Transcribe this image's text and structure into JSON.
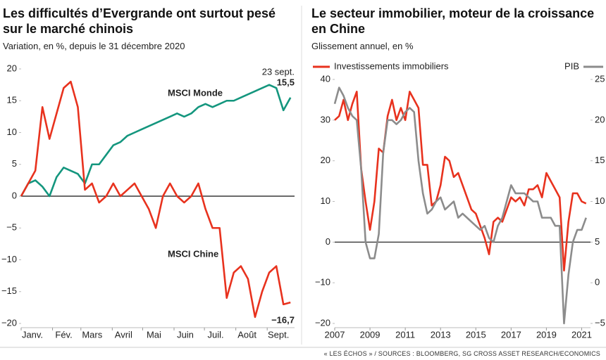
{
  "chart_data": [
    {
      "type": "line",
      "title": "Les difficultés d’Evergrande ont surtout pesé sur le marché chinois",
      "subtitle": "Variation, en %, depuis le 31 décembre 2020",
      "x": [
        0,
        7,
        14,
        21,
        28,
        35,
        42,
        49,
        56,
        63,
        70,
        77,
        84,
        91,
        98,
        105,
        112,
        119,
        126,
        133,
        140,
        147,
        154,
        161,
        168,
        175,
        182,
        189,
        196,
        203,
        210,
        217,
        224,
        231,
        238,
        245,
        252,
        259,
        266
      ],
      "xlim": [
        0,
        270
      ],
      "xticks": [
        {
          "value": 0,
          "label": "Janv."
        },
        {
          "value": 31,
          "label": "Fév."
        },
        {
          "value": 59,
          "label": "Mars"
        },
        {
          "value": 90,
          "label": "Avril"
        },
        {
          "value": 120,
          "label": "Mai"
        },
        {
          "value": 151,
          "label": "Juin"
        },
        {
          "value": 181,
          "label": "Juil."
        },
        {
          "value": 212,
          "label": "Août"
        },
        {
          "value": 243,
          "label": "Sept."
        }
      ],
      "ylim": [
        -20,
        20
      ],
      "yticks": [
        {
          "value": -20,
          "label": "−20"
        },
        {
          "value": -15,
          "label": "−15"
        },
        {
          "value": -10,
          "label": "−10"
        },
        {
          "value": -5,
          "label": "−5"
        },
        0,
        5,
        10,
        15,
        20
      ],
      "series": [
        {
          "name": "MSCI Monde",
          "color": "#14967e",
          "values": [
            0,
            2,
            2.5,
            1.5,
            0,
            3,
            4.5,
            4,
            3.5,
            2,
            5,
            5,
            6.5,
            8,
            8.5,
            9.5,
            10,
            10.5,
            11,
            11.5,
            12,
            12.5,
            13,
            12.5,
            13,
            14,
            14.5,
            14,
            14.5,
            15,
            15,
            15.5,
            16,
            16.5,
            17,
            17.5,
            17,
            13.5,
            15.5
          ]
        },
        {
          "name": "MSCI Chine",
          "color": "#e8321e",
          "values": [
            0,
            2,
            4,
            14,
            9,
            13,
            17,
            18,
            14,
            1,
            2,
            -1,
            0,
            2,
            0,
            1,
            2,
            0,
            -2,
            -5,
            0,
            2,
            0,
            -1,
            0,
            2,
            -2,
            -5,
            -5,
            -16,
            -12,
            -11,
            -13,
            -19,
            -15,
            -12,
            -11,
            -17,
            -16.7
          ]
        }
      ],
      "annotations": [
        "23 sept.",
        "15,5",
        "−16,7"
      ]
    },
    {
      "type": "line",
      "title": "Le secteur immobilier, moteur de la croissance en Chine",
      "subtitle": "Glissement annuel, en %",
      "x": [
        2007,
        2007.25,
        2007.5,
        2007.75,
        2008,
        2008.25,
        2008.5,
        2008.75,
        2009,
        2009.25,
        2009.5,
        2009.75,
        2010,
        2010.25,
        2010.5,
        2010.75,
        2011,
        2011.25,
        2011.5,
        2011.75,
        2012,
        2012.25,
        2012.5,
        2012.75,
        2013,
        2013.25,
        2013.5,
        2013.75,
        2014,
        2014.25,
        2014.5,
        2014.75,
        2015,
        2015.25,
        2015.5,
        2015.75,
        2016,
        2016.25,
        2016.5,
        2016.75,
        2017,
        2017.25,
        2017.5,
        2017.75,
        2018,
        2018.25,
        2018.5,
        2018.75,
        2019,
        2019.25,
        2019.5,
        2019.75,
        2020,
        2020.25,
        2020.5,
        2020.75,
        2021,
        2021.25
      ],
      "xlim": [
        2007,
        2021.5
      ],
      "xticks": [
        2007,
        2009,
        2011,
        2013,
        2015,
        2017,
        2019,
        2021
      ],
      "ylim": [
        -20,
        40
      ],
      "yticks": [
        {
          "value": -20,
          "label": "−20"
        },
        {
          "value": -10,
          "label": "−10"
        },
        0,
        10,
        20,
        30,
        40
      ],
      "y2lim": [
        -5,
        25
      ],
      "y2ticks": [
        {
          "value": -5,
          "label": "−5"
        },
        0,
        5,
        10,
        15,
        20,
        25
      ],
      "series": [
        {
          "name": "Investissements immobiliers",
          "color": "#e8321e",
          "values": [
            30,
            31,
            35,
            30,
            34,
            37,
            18,
            10,
            3,
            10,
            23,
            22,
            31,
            35,
            30,
            33,
            30,
            37,
            35,
            33,
            19,
            19,
            9,
            10,
            14,
            21,
            20,
            16,
            17,
            14,
            11,
            8,
            7,
            4,
            1,
            -3,
            5,
            6,
            5,
            8,
            11,
            10,
            11,
            9,
            13,
            13,
            14,
            11,
            17,
            15,
            13,
            11,
            -7,
            5,
            12,
            12,
            10,
            9.5
          ]
        },
        {
          "name": "PIB",
          "color": "#8c8c8c",
          "axis": "y2",
          "values": [
            22,
            24,
            23,
            21.5,
            20.5,
            20,
            14,
            5,
            3,
            3,
            6,
            16,
            20,
            20,
            19.5,
            20,
            21,
            21.5,
            21,
            15,
            11,
            8.5,
            9,
            10,
            10.5,
            9,
            9.5,
            10,
            8,
            8.5,
            8,
            7.5,
            7,
            6.5,
            7,
            5.5,
            5,
            7,
            8,
            10,
            12,
            11,
            11,
            11,
            10.5,
            10,
            10,
            8,
            8,
            8,
            7,
            7,
            -5,
            1,
            5,
            6.5,
            6.5,
            8
          ]
        }
      ]
    }
  ],
  "source": "« LES ÉCHOS » / SOURCES : BLOOMBERG, SG CROSS ASSET RESEARCH/ECONOMICS"
}
